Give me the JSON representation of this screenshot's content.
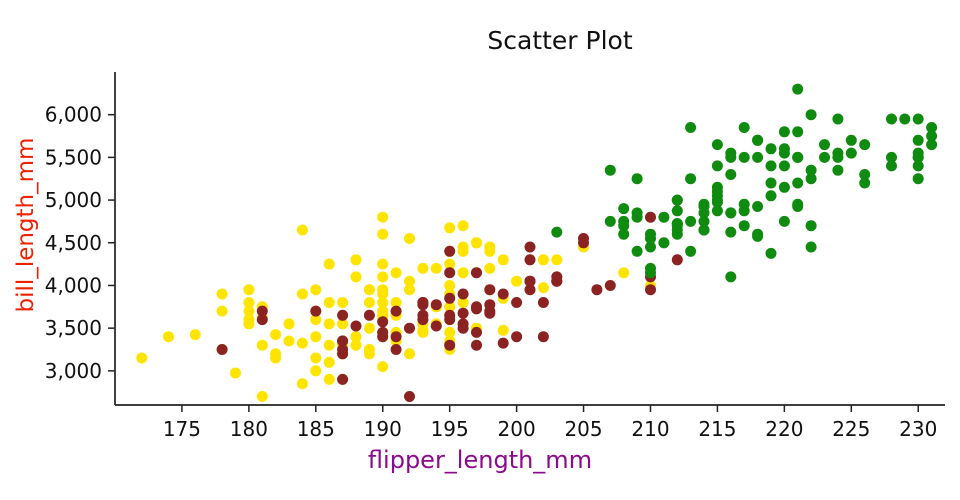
{
  "chart_data": {
    "type": "scatter",
    "title": "Scatter Plot",
    "xlabel": "flipper_length_mm",
    "ylabel": "bill_length_mm",
    "xlim": [
      170,
      232
    ],
    "ylim": [
      2600,
      6500
    ],
    "x_ticks": [
      175,
      180,
      185,
      190,
      195,
      200,
      205,
      210,
      215,
      220,
      225,
      230
    ],
    "y_ticks": [
      3000,
      3500,
      4000,
      4500,
      5000,
      5500,
      6000
    ],
    "y_tick_labels": [
      "3,000",
      "3,500",
      "4,000",
      "4,500",
      "5,000",
      "5,500",
      "6,000"
    ],
    "grid": false,
    "legend_position": "none",
    "colors": {
      "title": "#111111",
      "xlabel": "#8c0a8c",
      "ylabel": "#ee2200",
      "axis": "#222222",
      "tick_text": "#111111"
    },
    "series": [
      {
        "name": "yellow",
        "color": "#ffe400",
        "points": [
          [
            172,
            3150
          ],
          [
            174,
            3400
          ],
          [
            176,
            3425
          ],
          [
            178,
            3250
          ],
          [
            178,
            3900
          ],
          [
            178,
            3700
          ],
          [
            179,
            2975
          ],
          [
            180,
            3700
          ],
          [
            180,
            3600
          ],
          [
            180,
            3800
          ],
          [
            180,
            3950
          ],
          [
            180,
            3550
          ],
          [
            181,
            3750
          ],
          [
            181,
            3625
          ],
          [
            181,
            3300
          ],
          [
            181,
            2700
          ],
          [
            182,
            3200
          ],
          [
            182,
            3150
          ],
          [
            182,
            3425
          ],
          [
            183,
            3550
          ],
          [
            183,
            3350
          ],
          [
            184,
            3325
          ],
          [
            184,
            3900
          ],
          [
            184,
            4650
          ],
          [
            184,
            2850
          ],
          [
            185,
            3700
          ],
          [
            185,
            3950
          ],
          [
            185,
            3150
          ],
          [
            185,
            3000
          ],
          [
            185,
            3600
          ],
          [
            185,
            3400
          ],
          [
            186,
            3800
          ],
          [
            186,
            3300
          ],
          [
            186,
            3100
          ],
          [
            186,
            3550
          ],
          [
            186,
            2900
          ],
          [
            186,
            4250
          ],
          [
            187,
            3800
          ],
          [
            187,
            3200
          ],
          [
            187,
            2900
          ],
          [
            187,
            3325
          ],
          [
            187,
            3550
          ],
          [
            187,
            3300
          ],
          [
            188,
            3300
          ],
          [
            188,
            4300
          ],
          [
            188,
            4100
          ],
          [
            188,
            3400
          ],
          [
            189,
            3800
          ],
          [
            189,
            3200
          ],
          [
            189,
            3500
          ],
          [
            189,
            3950
          ],
          [
            189,
            3250
          ],
          [
            190,
            3650
          ],
          [
            190,
            4250
          ],
          [
            190,
            3950
          ],
          [
            190,
            4600
          ],
          [
            190,
            3450
          ],
          [
            190,
            3050
          ],
          [
            190,
            3600
          ],
          [
            190,
            3900
          ],
          [
            190,
            3700
          ],
          [
            190,
            3800
          ],
          [
            190,
            3400
          ],
          [
            190,
            4100
          ],
          [
            190,
            4800
          ],
          [
            191,
            3800
          ],
          [
            191,
            4150
          ],
          [
            191,
            3700
          ],
          [
            191,
            3350
          ],
          [
            191,
            3650
          ],
          [
            191,
            3675
          ],
          [
            191,
            3450
          ],
          [
            192,
            4050
          ],
          [
            192,
            3950
          ],
          [
            192,
            3200
          ],
          [
            192,
            4550
          ],
          [
            193,
            3450
          ],
          [
            193,
            3475
          ],
          [
            193,
            3800
          ],
          [
            193,
            4200
          ],
          [
            193,
            3600
          ],
          [
            193,
            3550
          ],
          [
            194,
            4200
          ],
          [
            194,
            3750
          ],
          [
            194,
            3550
          ],
          [
            195,
            3250
          ],
          [
            195,
            4675
          ],
          [
            195,
            3450
          ],
          [
            195,
            3325
          ],
          [
            195,
            3900
          ],
          [
            195,
            4400
          ],
          [
            195,
            3350
          ],
          [
            195,
            4250
          ],
          [
            195,
            4000
          ],
          [
            195,
            3750
          ],
          [
            196,
            4150
          ],
          [
            196,
            4400
          ],
          [
            196,
            3550
          ],
          [
            196,
            4700
          ],
          [
            196,
            4450
          ],
          [
            196,
            3800
          ],
          [
            197,
            4500
          ],
          [
            197,
            4150
          ],
          [
            197,
            3500
          ],
          [
            197,
            4500
          ],
          [
            198,
            4400
          ],
          [
            198,
            4450
          ],
          [
            198,
            3950
          ],
          [
            198,
            4200
          ],
          [
            199,
            3850
          ],
          [
            199,
            4300
          ],
          [
            199,
            3475
          ],
          [
            200,
            4050
          ],
          [
            202,
            4300
          ],
          [
            202,
            3975
          ],
          [
            203,
            4300
          ],
          [
            205,
            4450
          ],
          [
            208,
            4150
          ],
          [
            210,
            4000
          ]
        ]
      },
      {
        "name": "dark-red",
        "color": "#8b2323",
        "points": [
          [
            192,
            3500
          ],
          [
            196,
            3900
          ],
          [
            193,
            3650
          ],
          [
            188,
            3525
          ],
          [
            197,
            3725
          ],
          [
            198,
            3950
          ],
          [
            178,
            3250
          ],
          [
            197,
            3750
          ],
          [
            195,
            4150
          ],
          [
            198,
            3700
          ],
          [
            193,
            3800
          ],
          [
            194,
            3775
          ],
          [
            185,
            3700
          ],
          [
            201,
            4050
          ],
          [
            190,
            3575
          ],
          [
            201,
            4050
          ],
          [
            197,
            3300
          ],
          [
            181,
            3700
          ],
          [
            190,
            3450
          ],
          [
            195,
            4400
          ],
          [
            181,
            3600
          ],
          [
            191,
            3400
          ],
          [
            187,
            2900
          ],
          [
            193,
            3800
          ],
          [
            195,
            3300
          ],
          [
            197,
            4150
          ],
          [
            200,
            3400
          ],
          [
            200,
            3800
          ],
          [
            191,
            3700
          ],
          [
            205,
            4550
          ],
          [
            187,
            3200
          ],
          [
            201,
            4300
          ],
          [
            187,
            3350
          ],
          [
            203,
            4100
          ],
          [
            195,
            3600
          ],
          [
            199,
            3900
          ],
          [
            195,
            3850
          ],
          [
            210,
            4800
          ],
          [
            192,
            2700
          ],
          [
            205,
            4500
          ],
          [
            210,
            3950
          ],
          [
            187,
            3650
          ],
          [
            196,
            3550
          ],
          [
            196,
            3500
          ],
          [
            196,
            3675
          ],
          [
            201,
            4450
          ],
          [
            190,
            3400
          ],
          [
            212,
            4300
          ],
          [
            187,
            3250
          ],
          [
            198,
            3675
          ],
          [
            199,
            3325
          ],
          [
            201,
            3950
          ],
          [
            193,
            3600
          ],
          [
            203,
            4050
          ],
          [
            187,
            3350
          ],
          [
            197,
            3450
          ],
          [
            191,
            3250
          ],
          [
            203,
            4050
          ],
          [
            202,
            3800
          ],
          [
            194,
            3525
          ],
          [
            206,
            3950
          ],
          [
            189,
            3650
          ],
          [
            195,
            3650
          ],
          [
            207,
            4000
          ],
          [
            202,
            3400
          ],
          [
            193,
            3775
          ],
          [
            210,
            4100
          ],
          [
            198,
            3775
          ]
        ]
      },
      {
        "name": "green",
        "color": "#0f8b0f",
        "points": [
          [
            211,
            4500
          ],
          [
            230,
            5700
          ],
          [
            210,
            4450
          ],
          [
            218,
            5700
          ],
          [
            215,
            5400
          ],
          [
            210,
            4550
          ],
          [
            211,
            4800
          ],
          [
            219,
            5200
          ],
          [
            209,
            4400
          ],
          [
            215,
            5150
          ],
          [
            214,
            4650
          ],
          [
            216,
            5550
          ],
          [
            214,
            4650
          ],
          [
            213,
            5850
          ],
          [
            210,
            4200
          ],
          [
            217,
            5850
          ],
          [
            210,
            4150
          ],
          [
            221,
            6300
          ],
          [
            209,
            4800
          ],
          [
            222,
            5350
          ],
          [
            218,
            5700
          ],
          [
            215,
            5000
          ],
          [
            213,
            4400
          ],
          [
            215,
            5050
          ],
          [
            215,
            5100
          ],
          [
            216,
            4100
          ],
          [
            215,
            5650
          ],
          [
            210,
            4600
          ],
          [
            220,
            5550
          ],
          [
            222,
            4450
          ],
          [
            209,
            5250
          ],
          [
            207,
            4750
          ],
          [
            230,
            5550
          ],
          [
            220,
            5400
          ],
          [
            213,
            4750
          ],
          [
            219,
            5400
          ],
          [
            208,
            4600
          ],
          [
            230,
            5950
          ],
          [
            228,
            5950
          ],
          [
            218,
            4925
          ],
          [
            212,
            4875
          ],
          [
            224,
            5350
          ],
          [
            214,
            4850
          ],
          [
            225,
            5700
          ],
          [
            217,
            4700
          ],
          [
            220,
            5800
          ],
          [
            208,
            4700
          ],
          [
            221,
            5800
          ],
          [
            208,
            4750
          ],
          [
            224,
            5550
          ],
          [
            208,
            4900
          ],
          [
            221,
            4950
          ],
          [
            214,
            4750
          ],
          [
            231,
            5650
          ],
          [
            219,
            5050
          ],
          [
            230,
            5500
          ],
          [
            214,
            4950
          ],
          [
            229,
            5950
          ],
          [
            220,
            4750
          ],
          [
            223,
            5650
          ],
          [
            216,
            4850
          ],
          [
            221,
            5200
          ],
          [
            221,
            4925
          ],
          [
            217,
            4875
          ],
          [
            216,
            4625
          ],
          [
            230,
            5250
          ],
          [
            209,
            4850
          ],
          [
            220,
            5600
          ],
          [
            215,
            4975
          ],
          [
            223,
            5500
          ],
          [
            212,
            4725
          ],
          [
            221,
            5500
          ],
          [
            212,
            4600
          ],
          [
            224,
            5500
          ],
          [
            212,
            4725
          ],
          [
            228,
            5500
          ],
          [
            218,
            4600
          ],
          [
            218,
            5500
          ],
          [
            212,
            4700
          ],
          [
            230,
            5500
          ],
          [
            218,
            4575
          ],
          [
            228,
            5400
          ],
          [
            212,
            5000
          ],
          [
            224,
            5950
          ],
          [
            212,
            4650
          ],
          [
            221,
            5500
          ],
          [
            219,
            4375
          ],
          [
            231,
            5850
          ],
          [
            215,
            4875
          ],
          [
            222,
            6000
          ],
          [
            214,
            4925
          ],
          [
            231,
            5750
          ],
          [
            216,
            4850
          ],
          [
            226,
            5200
          ],
          [
            212,
            5000
          ],
          [
            230,
            5400
          ],
          [
            216,
            5300
          ],
          [
            203,
            4625
          ],
          [
            207,
            5350
          ],
          [
            213,
            5250
          ],
          [
            216,
            5500
          ],
          [
            217,
            5500
          ],
          [
            219,
            5600
          ],
          [
            222,
            5250
          ],
          [
            225,
            5550
          ],
          [
            226,
            5300
          ],
          [
            222,
            4700
          ],
          [
            217,
            4950
          ],
          [
            220,
            5150
          ],
          [
            226,
            5650
          ]
        ]
      }
    ]
  }
}
